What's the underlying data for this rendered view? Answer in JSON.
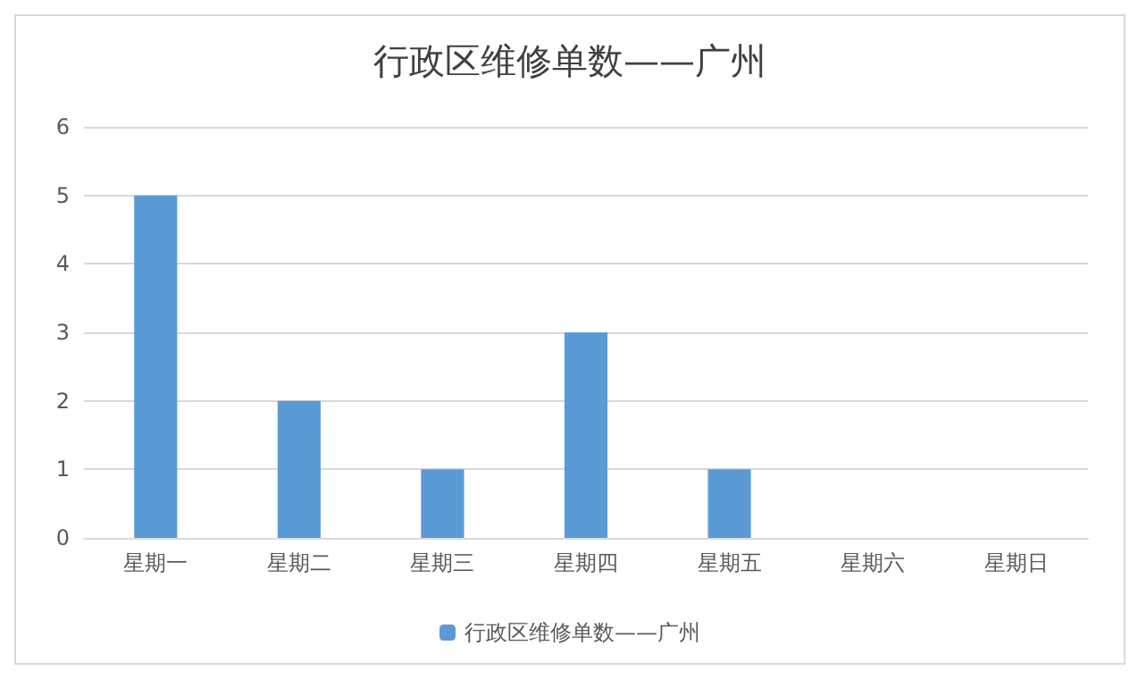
{
  "chart_data": {
    "type": "bar",
    "title": "行政区维修单数——广州",
    "categories": [
      "星期一",
      "星期二",
      "星期三",
      "星期四",
      "星期五",
      "星期六",
      "星期日"
    ],
    "series": [
      {
        "name": "行政区维修单数——广州",
        "color": "#5b9bd5",
        "values": [
          5,
          2,
          1,
          3,
          1,
          0,
          0
        ]
      }
    ],
    "ylim": [
      0,
      6
    ],
    "yticks": [
      0,
      1,
      2,
      3,
      4,
      5,
      6
    ],
    "grid": "y",
    "legend": "bottom"
  }
}
